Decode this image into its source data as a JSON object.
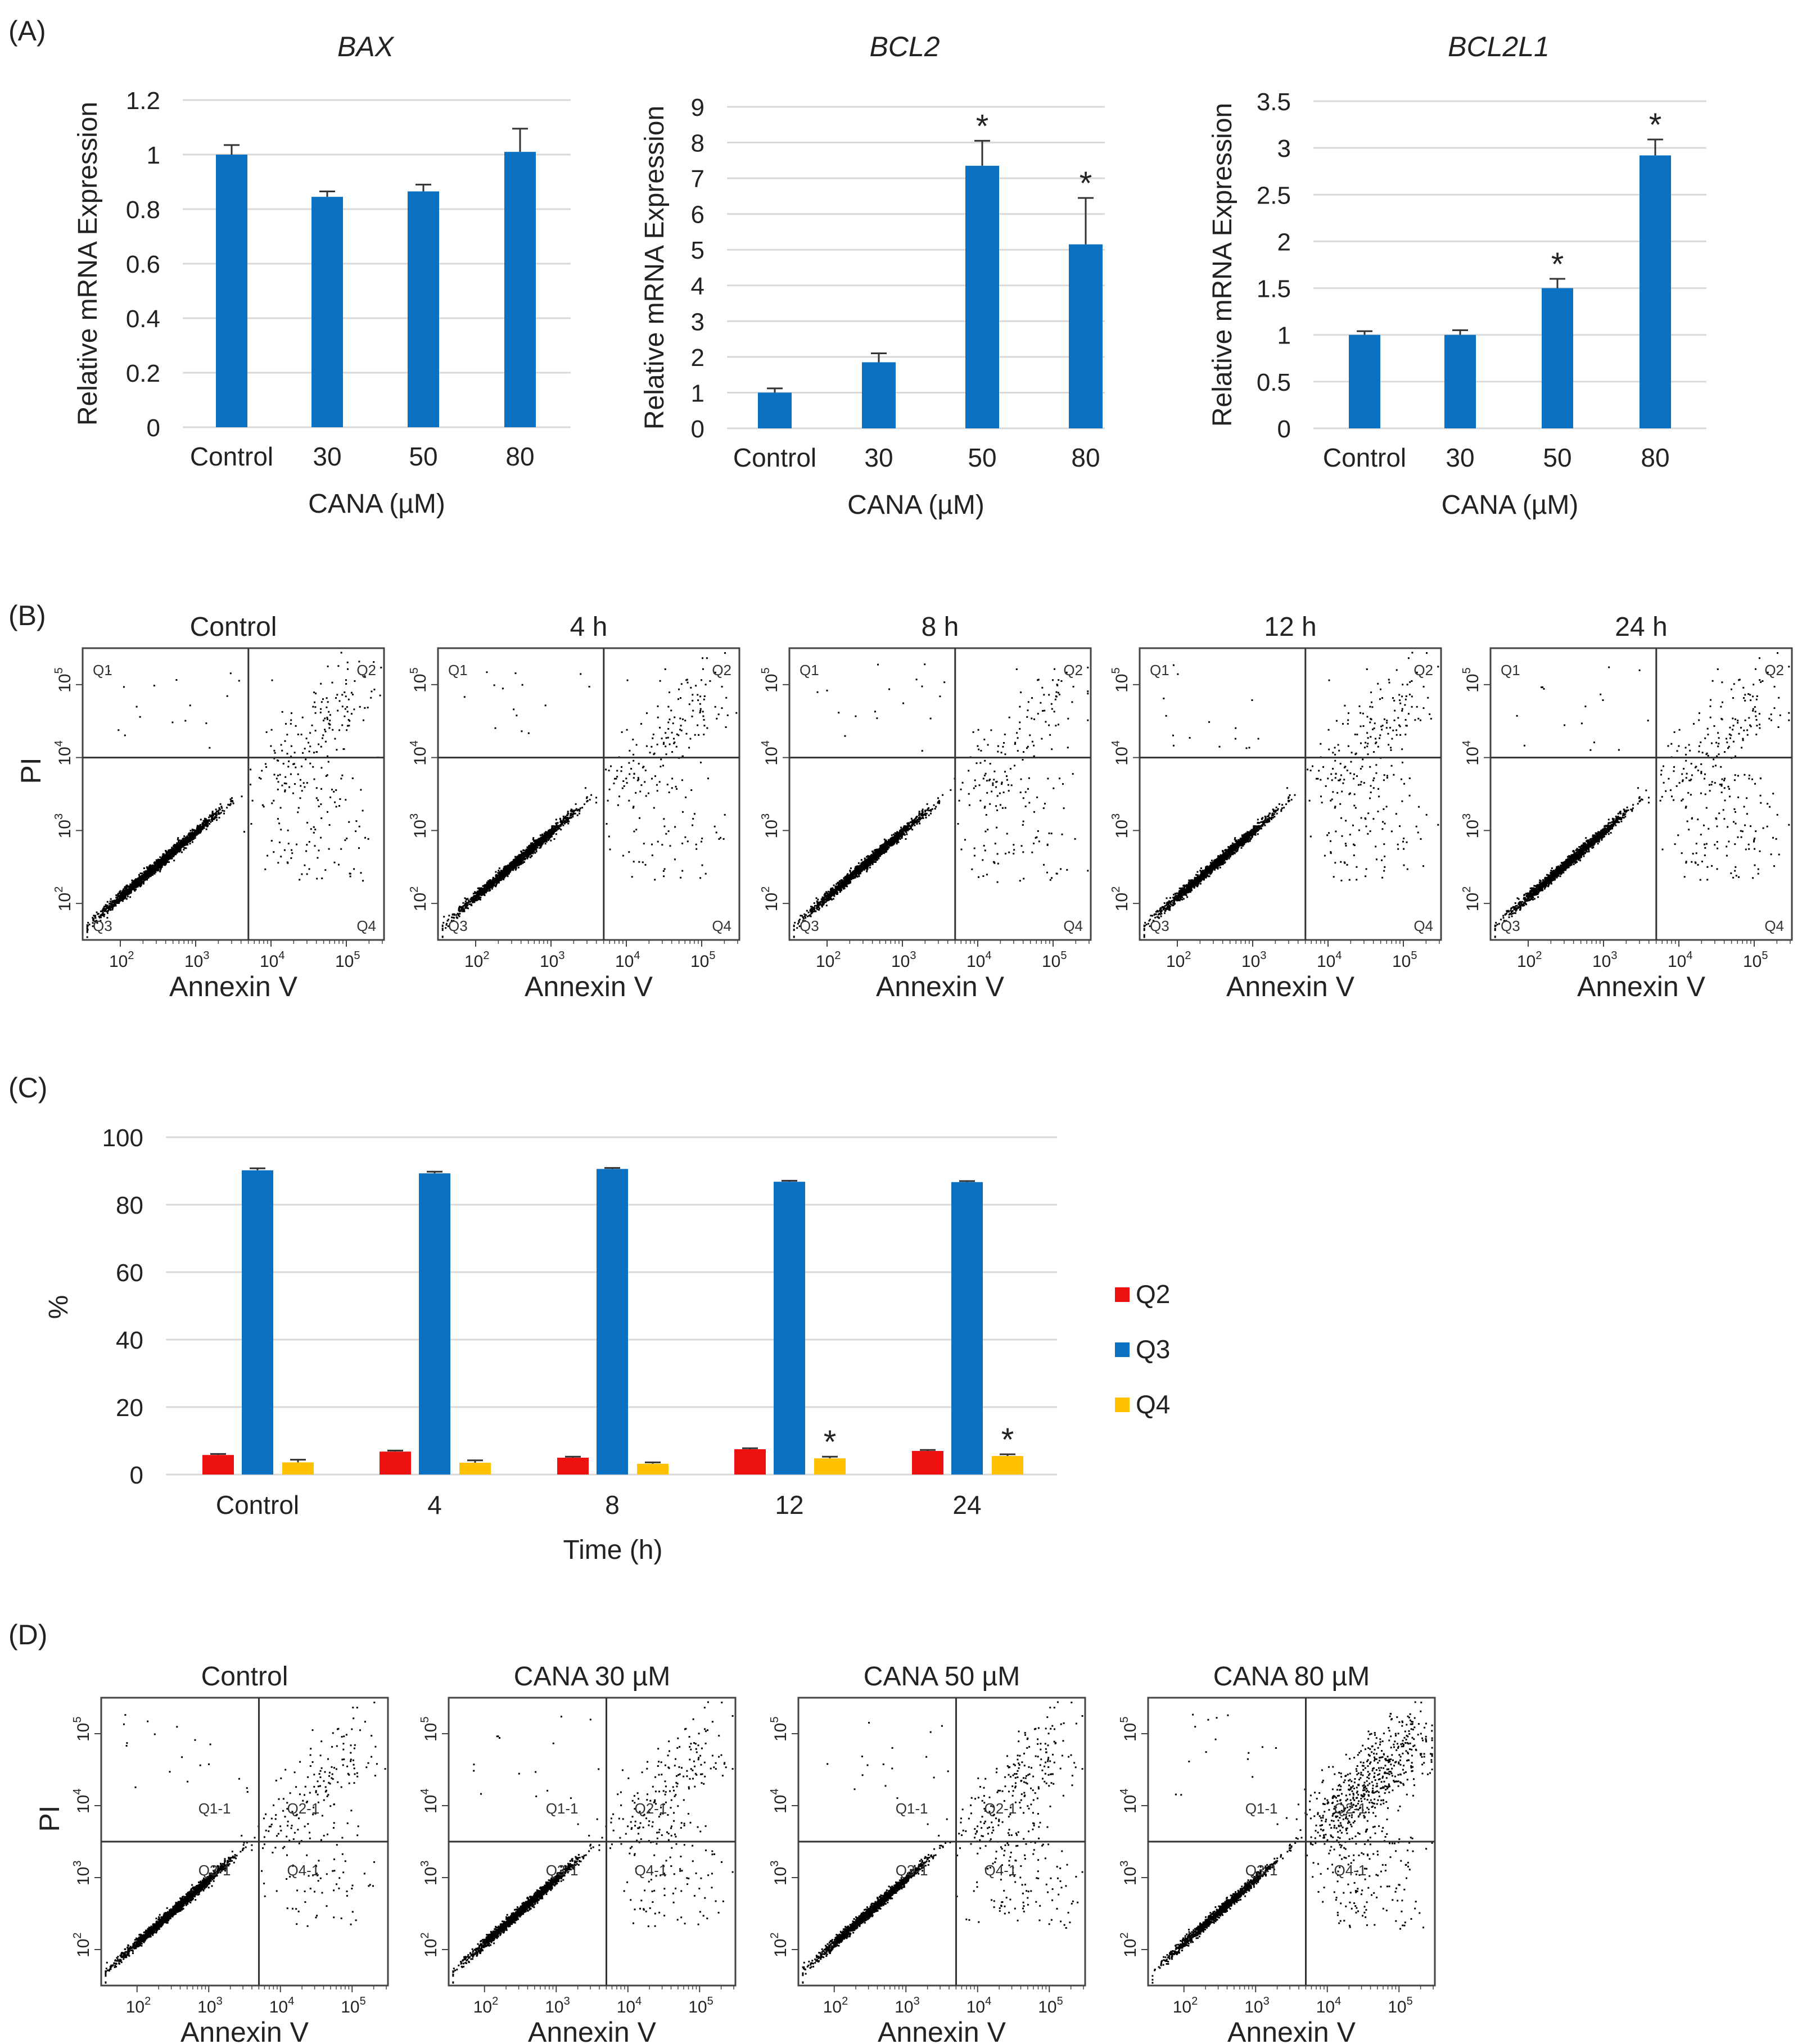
{
  "panel_labels": [
    "(A)",
    "(B)",
    "(C)",
    "(D)"
  ],
  "chart_data": [
    {
      "id": "A1",
      "type": "bar",
      "title": "BAX",
      "categories": [
        "Control",
        "30",
        "50",
        "80"
      ],
      "values": [
        1.0,
        0.845,
        0.865,
        1.01
      ],
      "errors": [
        0.035,
        0.02,
        0.025,
        0.085
      ],
      "significant": [
        false,
        false,
        false,
        false
      ],
      "ylim": [
        0,
        1.2
      ],
      "yticks": [
        "0",
        "0.2",
        "0.4",
        "0.6",
        "0.8",
        "1",
        "1.2"
      ],
      "ylabel": "Relative mRNA Expression",
      "xlabel": "CANA (µM)",
      "color": "#0a70c2",
      "sig_mark": "*"
    },
    {
      "id": "A2",
      "type": "bar",
      "title": "BCL2",
      "categories": [
        "Control",
        "30",
        "50",
        "80"
      ],
      "values": [
        1.0,
        1.85,
        7.35,
        5.15
      ],
      "errors": [
        0.12,
        0.25,
        0.7,
        1.3
      ],
      "significant": [
        false,
        false,
        true,
        true
      ],
      "ylim": [
        0,
        9
      ],
      "yticks": [
        "0",
        "1",
        "2",
        "3",
        "4",
        "5",
        "6",
        "7",
        "8",
        "9"
      ],
      "ylabel": "Relative mRNA Expression",
      "xlabel": "CANA (µM)",
      "color": "#0a70c2",
      "sig_mark": "*"
    },
    {
      "id": "A3",
      "type": "bar",
      "title": "BCL2L1",
      "categories": [
        "Control",
        "30",
        "50",
        "80"
      ],
      "values": [
        1.0,
        1.0,
        1.5,
        2.92
      ],
      "errors": [
        0.04,
        0.05,
        0.1,
        0.17
      ],
      "significant": [
        false,
        false,
        true,
        true
      ],
      "ylim": [
        0,
        3.5
      ],
      "yticks": [
        "0",
        "0.5",
        "1",
        "1.5",
        "2",
        "2.5",
        "3",
        "3.5"
      ],
      "ylabel": "Relative mRNA Expression",
      "xlabel": "CANA (µM)",
      "color": "#0a70c2",
      "sig_mark": "*"
    },
    {
      "id": "B",
      "type": "scatter",
      "panels": [
        "Control",
        "4 h",
        "8 h",
        "12 h",
        "24 h"
      ],
      "quadrants": [
        "Q1",
        "Q2",
        "Q3",
        "Q4"
      ],
      "xlabel": "Annexin V",
      "ylabel": "PI",
      "xticks": [
        "10",
        "10",
        "10",
        "10"
      ],
      "xtick_exp": [
        "2",
        "3",
        "4",
        "5"
      ],
      "yticks": [
        "10",
        "10",
        "10",
        "10"
      ],
      "ytick_exp": [
        "2",
        "3",
        "4",
        "5"
      ],
      "gate": [
        3.7,
        4.0
      ],
      "late_apoptotic_fraction": [
        0.06,
        0.07,
        0.05,
        0.075,
        0.07
      ],
      "early_apoptotic_fraction": [
        0.04,
        0.035,
        0.04,
        0.05,
        0.06
      ]
    },
    {
      "id": "C",
      "type": "bar",
      "categories": [
        "Control",
        "4",
        "8",
        "12",
        "24"
      ],
      "series": [
        {
          "name": "Q2",
          "color": "#ee1111",
          "values": [
            5.8,
            6.8,
            5.0,
            7.5,
            7.0
          ],
          "errors": [
            0.3,
            0.3,
            0.3,
            0.3,
            0.3
          ],
          "significant": [
            false,
            false,
            false,
            false,
            false
          ]
        },
        {
          "name": "Q3",
          "color": "#0a70c2",
          "values": [
            90.2,
            89.3,
            90.6,
            86.8,
            86.7
          ],
          "errors": [
            0.6,
            0.5,
            0.3,
            0.3,
            0.3
          ],
          "significant": [
            false,
            false,
            false,
            false,
            false
          ]
        },
        {
          "name": "Q4",
          "color": "#ffc000",
          "values": [
            3.6,
            3.5,
            3.2,
            4.8,
            5.5
          ],
          "errors": [
            0.8,
            0.7,
            0.4,
            0.5,
            0.5
          ],
          "significant": [
            false,
            false,
            false,
            true,
            true
          ]
        }
      ],
      "ylim": [
        0,
        100
      ],
      "yticks": [
        "0",
        "20",
        "40",
        "60",
        "80",
        "100"
      ],
      "ylabel": "%",
      "xlabel": "Time  (h)",
      "legend_position": "right",
      "sig_mark": "*"
    },
    {
      "id": "D",
      "type": "scatter",
      "panels": [
        "Control",
        "CANA 30 µM",
        "CANA 50 µM",
        "CANA 80 µM"
      ],
      "quadrants": [
        "Q1-1",
        "Q2-1",
        "Q3-1",
        "Q4-1"
      ],
      "xlabel": "Annexin V",
      "ylabel": "PI",
      "xticks": [
        "10",
        "10",
        "10",
        "10"
      ],
      "xtick_exp": [
        "2",
        "3",
        "4",
        "5"
      ],
      "yticks": [
        "10",
        "10",
        "10",
        "10"
      ],
      "ytick_exp": [
        "2",
        "3",
        "4",
        "5"
      ],
      "gate": [
        3.7,
        3.5
      ],
      "late_apoptotic_fraction": [
        0.07,
        0.08,
        0.1,
        0.28
      ],
      "early_apoptotic_fraction": [
        0.04,
        0.05,
        0.06,
        0.08
      ]
    }
  ]
}
